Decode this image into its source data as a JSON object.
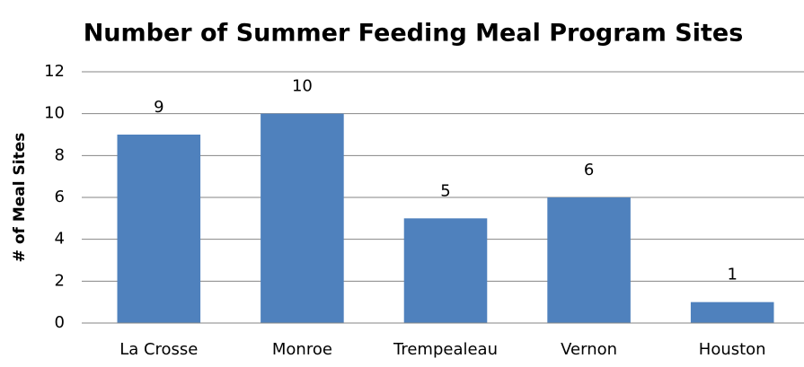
{
  "chart_data": {
    "type": "bar",
    "title": "Number of Summer Feeding Meal Program Sites",
    "y_label": "# of Meal Sites",
    "categories": [
      "La Crosse",
      "Monroe",
      "Trempealeau",
      "Vernon",
      "Houston"
    ],
    "values": [
      9,
      10,
      5,
      6,
      1
    ],
    "color": "#4f81bd",
    "ylim": [
      0,
      12
    ],
    "yticks": [
      0,
      2,
      4,
      6,
      8,
      10,
      12
    ],
    "grid": true,
    "data_labels": true
  }
}
